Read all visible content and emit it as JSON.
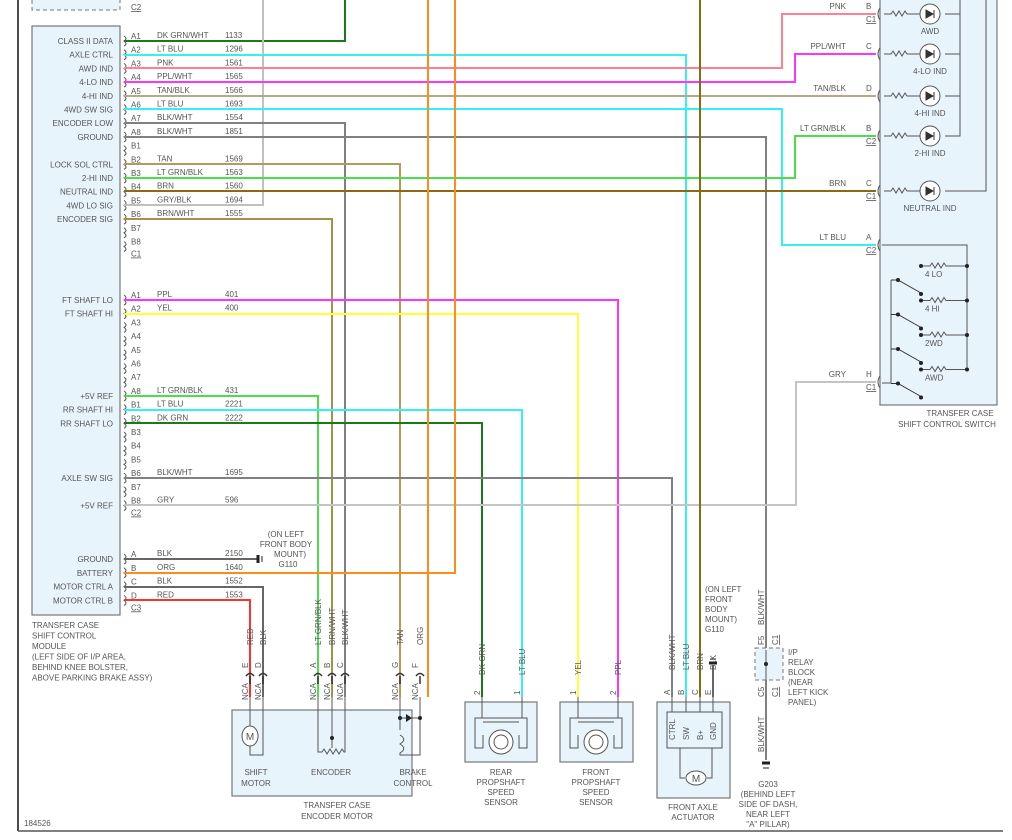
{
  "figure_id": "184526",
  "wire_colors": {
    "dk_grn": "#1a7a1a",
    "lt_blu": "#33f0f5",
    "pnk": "#ff8090",
    "ppl": "#ff33ff",
    "tan_blk": "#b5aa88",
    "blk_wht": "#808080",
    "tan": "#b59a5a",
    "lt_grn_blk": "#4cdc4c",
    "brn": "#8b6a14",
    "gry_blk": "#c0c0c0",
    "brn_wht": "#a8904c",
    "yel": "#ffff33",
    "gry": "#c4c4c4",
    "blk": "#666666",
    "org": "#ff8c1a",
    "red": "#ff3030"
  },
  "module": {
    "title_lines": [
      "TRANSFER CASE",
      "SHIFT CONTROL",
      "MODULE",
      "(LEFT SIDE OF I/P AREA,",
      "BEHIND KNEE BOLSTER,",
      "ABOVE PARKING BRAKE ASSY)"
    ],
    "top_connector_label": "C2",
    "connectors": [
      {
        "label": "C1",
        "pins": [
          {
            "pin": "A1",
            "signal": "CLASS II DATA",
            "wire": "DK GRN/WHT",
            "circuit": "1133"
          },
          {
            "pin": "A2",
            "signal": "AXLE CTRL",
            "wire": "LT BLU",
            "circuit": "1296"
          },
          {
            "pin": "A3",
            "signal": "AWD IND",
            "wire": "PNK",
            "circuit": "1561"
          },
          {
            "pin": "A4",
            "signal": "4-LO IND",
            "wire": "PPL/WHT",
            "circuit": "1565"
          },
          {
            "pin": "A5",
            "signal": "4-HI IND",
            "wire": "TAN/BLK",
            "circuit": "1566"
          },
          {
            "pin": "A6",
            "signal": "4WD SW SIG",
            "wire": "LT BLU",
            "circuit": "1693"
          },
          {
            "pin": "A7",
            "signal": "ENCODER LOW",
            "wire": "BLK/WHT",
            "circuit": "1554"
          },
          {
            "pin": "A8",
            "signal": "GROUND",
            "wire": "BLK/WHT",
            "circuit": "1851"
          },
          {
            "pin": "B1",
            "signal": "",
            "wire": "",
            "circuit": ""
          },
          {
            "pin": "B2",
            "signal": "LOCK SOL CTRL",
            "wire": "TAN",
            "circuit": "1569"
          },
          {
            "pin": "B3",
            "signal": "2-HI IND",
            "wire": "LT GRN/BLK",
            "circuit": "1563"
          },
          {
            "pin": "B4",
            "signal": "NEUTRAL IND",
            "wire": "BRN",
            "circuit": "1560"
          },
          {
            "pin": "B5",
            "signal": "4WD LO SIG",
            "wire": "GRY/BLK",
            "circuit": "1694"
          },
          {
            "pin": "B6",
            "signal": "ENCODER SIG",
            "wire": "BRN/WHT",
            "circuit": "1555"
          },
          {
            "pin": "B7",
            "signal": "",
            "wire": "",
            "circuit": ""
          },
          {
            "pin": "B8",
            "signal": "",
            "wire": "",
            "circuit": ""
          }
        ]
      },
      {
        "label": "C2",
        "pins": [
          {
            "pin": "A1",
            "signal": "FT SHAFT LO",
            "wire": "PPL",
            "circuit": "401"
          },
          {
            "pin": "A2",
            "signal": "FT SHAFT HI",
            "wire": "YEL",
            "circuit": "400"
          },
          {
            "pin": "A3",
            "signal": "",
            "wire": "",
            "circuit": ""
          },
          {
            "pin": "A4",
            "signal": "",
            "wire": "",
            "circuit": ""
          },
          {
            "pin": "A5",
            "signal": "",
            "wire": "",
            "circuit": ""
          },
          {
            "pin": "A6",
            "signal": "",
            "wire": "",
            "circuit": ""
          },
          {
            "pin": "A7",
            "signal": "",
            "wire": "",
            "circuit": ""
          },
          {
            "pin": "A8",
            "signal": "+5V REF",
            "wire": "LT GRN/BLK",
            "circuit": "431"
          },
          {
            "pin": "B1",
            "signal": "RR SHAFT HI",
            "wire": "LT BLU",
            "circuit": "2221"
          },
          {
            "pin": "B2",
            "signal": "RR SHAFT LO",
            "wire": "DK GRN",
            "circuit": "2222"
          },
          {
            "pin": "B3",
            "signal": "",
            "wire": "",
            "circuit": ""
          },
          {
            "pin": "B4",
            "signal": "",
            "wire": "",
            "circuit": ""
          },
          {
            "pin": "B5",
            "signal": "",
            "wire": "",
            "circuit": ""
          },
          {
            "pin": "B6",
            "signal": "AXLE SW SIG",
            "wire": "BLK/WHT",
            "circuit": "1695"
          },
          {
            "pin": "B7",
            "signal": "",
            "wire": "",
            "circuit": ""
          },
          {
            "pin": "B8",
            "signal": "+5V REF",
            "wire": "GRY",
            "circuit": "596"
          }
        ]
      },
      {
        "label": "C3",
        "pins": [
          {
            "pin": "A",
            "signal": "GROUND",
            "wire": "BLK",
            "circuit": "2150"
          },
          {
            "pin": "B",
            "signal": "BATTERY",
            "wire": "ORG",
            "circuit": "1640"
          },
          {
            "pin": "C",
            "signal": "MOTOR CTRL A",
            "wire": "BLK",
            "circuit": "1552"
          },
          {
            "pin": "D",
            "signal": "MOTOR CTRL B",
            "wire": "RED",
            "circuit": "1553"
          }
        ]
      }
    ]
  },
  "ground_g110_module": {
    "lines": [
      "(ON LEFT",
      "FRONT BODY",
      "MOUNT)",
      "G110"
    ]
  },
  "switch": {
    "title_lines": [
      "TRANSFER CASE",
      "SHIFT CONTROL SWITCH"
    ],
    "terminals": [
      {
        "wire": "PNK",
        "pin": "B",
        "conn": "C1",
        "indicator": "AWD"
      },
      {
        "wire": "PPL/WHT",
        "pin": "C",
        "conn": "",
        "indicator": "4-LO IND"
      },
      {
        "wire": "TAN/BLK",
        "pin": "D",
        "conn": "",
        "indicator": "4-HI IND"
      },
      {
        "wire": "LT GRN/BLK",
        "pin": "B",
        "conn": "C2",
        "indicator": "2-HI IND"
      },
      {
        "wire": "BRN",
        "pin": "C",
        "conn": "C1",
        "indicator": "NEUTRAL IND"
      },
      {
        "wire": "LT BLU",
        "pin": "A",
        "conn": "C2",
        "indicator": ""
      },
      {
        "wire": "GRY",
        "pin": "H",
        "conn": "C1",
        "indicator": ""
      }
    ],
    "positions": [
      "4 LO",
      "4 HI",
      "2WD",
      "AWD"
    ]
  },
  "encoder_motor": {
    "title_lines": [
      "TRANSFER CASE",
      "ENCODER MOTOR"
    ],
    "pins": [
      {
        "pin": "E",
        "wire": "RED",
        "nca": "NCA"
      },
      {
        "pin": "D",
        "wire": "BLK",
        "nca": "NCA"
      },
      {
        "pin": "A",
        "wire": "LT GRN/BLK",
        "nca": "NCA"
      },
      {
        "pin": "B",
        "wire": "BRN/WHT",
        "nca": "NCA"
      },
      {
        "pin": "C",
        "wire": "BLK/WHT",
        "nca": "NCA"
      },
      {
        "pin": "G",
        "wire": "TAN",
        "nca": "NCA"
      },
      {
        "pin": "F",
        "wire": "ORG",
        "nca": "NCA"
      }
    ],
    "motor_symbol": "M",
    "shift_motor": [
      "SHIFT",
      "MOTOR"
    ],
    "encoder": "ENCODER",
    "brake": [
      "BRAKE",
      "CONTROL"
    ]
  },
  "rear_sensor": {
    "title_lines": [
      "REAR",
      "PROPSHAFT",
      "SPEED",
      "SENSOR"
    ],
    "pins": [
      {
        "pin": "2",
        "wire": "DK GRN"
      },
      {
        "pin": "1",
        "wire": "LT BLU"
      }
    ]
  },
  "front_sensor": {
    "title_lines": [
      "FRONT",
      "PROPSHAFT",
      "SPEED",
      "SENSOR"
    ],
    "pins": [
      {
        "pin": "1",
        "wire": "YEL"
      },
      {
        "pin": "2",
        "wire": "PPL"
      }
    ]
  },
  "actuator": {
    "title_lines": [
      "FRONT AXLE",
      "ACTUATOR"
    ],
    "pins": [
      {
        "pin": "A",
        "wire": "BLK/WHT",
        "func": "CTRL"
      },
      {
        "pin": "B",
        "wire": "LT BLU",
        "func": "SW"
      },
      {
        "pin": "C",
        "wire": "BRN",
        "func": "B+"
      },
      {
        "pin": "E",
        "wire": "BLK",
        "func": "GND"
      }
    ],
    "motor_symbol": "M"
  },
  "ground_g110_actuator": {
    "lines": [
      "(ON LEFT",
      "FRONT",
      "BODY",
      "MOUNT)",
      "G110"
    ]
  },
  "relay_block": {
    "lines": [
      "I/P",
      "RELAY",
      "BLOCK",
      "(NEAR",
      "LEFT KICK",
      "PANEL)"
    ],
    "top_pin": "F5",
    "top_conn": "C1",
    "bottom_pin": "C5",
    "bottom_conn": "C1",
    "wire": "BLK/WHT"
  },
  "ground_g203": {
    "lines": [
      "G203",
      "(BEHIND LEFT",
      "SIDE OF DASH,",
      "NEAR LEFT",
      "\"A\" PILLAR)"
    ]
  }
}
